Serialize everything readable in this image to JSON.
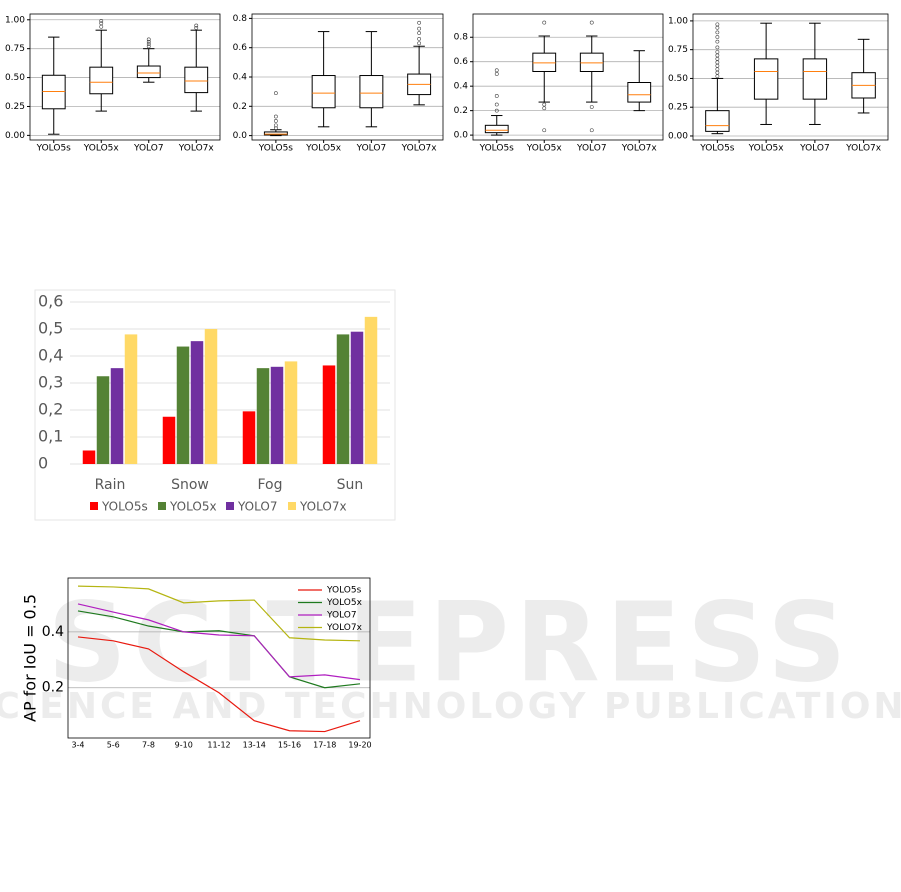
{
  "chart_data": [
    {
      "type": "box",
      "categories": [
        "YOLO5s",
        "YOLO5x",
        "YOLO7",
        "YOLO7x"
      ],
      "boxes": [
        {
          "whislo": 0.01,
          "q1": 0.23,
          "med": 0.38,
          "q3": 0.52,
          "whishi": 0.85,
          "fliers": []
        },
        {
          "whislo": 0.21,
          "q1": 0.36,
          "med": 0.46,
          "q3": 0.59,
          "whishi": 0.91,
          "fliers": [
            0.94,
            0.97,
            0.99
          ]
        },
        {
          "whislo": 0.46,
          "q1": 0.5,
          "med": 0.54,
          "q3": 0.6,
          "whishi": 0.75,
          "fliers": [
            0.77,
            0.79,
            0.81,
            0.83
          ]
        },
        {
          "whislo": 0.21,
          "q1": 0.37,
          "med": 0.47,
          "q3": 0.59,
          "whishi": 0.91,
          "fliers": [
            0.93,
            0.95
          ]
        }
      ],
      "ylim": [
        -0.04,
        1.05
      ],
      "yticks": [
        {
          "value": 0,
          "label": "0.00"
        },
        {
          "value": 0.25,
          "label": "0.25"
        },
        {
          "value": 0.5,
          "label": "0.50"
        },
        {
          "value": 0.75,
          "label": "0.75"
        },
        {
          "value": 1,
          "label": "1.00"
        }
      ],
      "grid": true,
      "median_color": "#ff7f0e"
    },
    {
      "type": "box",
      "categories": [
        "YOLO5s",
        "YOLO5x",
        "YOLO7",
        "YOLO7x"
      ],
      "boxes": [
        {
          "whislo": 0,
          "q1": 0.005,
          "med": 0.01,
          "q3": 0.025,
          "whishi": 0.04,
          "fliers": [
            0.05,
            0.07,
            0.1,
            0.13,
            0.29
          ]
        },
        {
          "whislo": 0.06,
          "q1": 0.19,
          "med": 0.29,
          "q3": 0.41,
          "whishi": 0.71,
          "fliers": []
        },
        {
          "whislo": 0.06,
          "q1": 0.19,
          "med": 0.29,
          "q3": 0.41,
          "whishi": 0.71,
          "fliers": []
        },
        {
          "whislo": 0.21,
          "q1": 0.28,
          "med": 0.35,
          "q3": 0.42,
          "whishi": 0.61,
          "fliers": [
            0.63,
            0.66,
            0.7,
            0.73,
            0.77
          ]
        }
      ],
      "ylim": [
        -0.03,
        0.83
      ],
      "yticks": [
        {
          "value": 0,
          "label": "0.0"
        },
        0.2,
        0.4,
        0.6,
        0.8
      ],
      "grid": true,
      "median_color": "#ff7f0e"
    },
    {
      "type": "box",
      "categories": [
        "YOLO5s",
        "YOLO5x",
        "YOLO7",
        "YOLO7x"
      ],
      "boxes": [
        {
          "whislo": 0,
          "q1": 0.02,
          "med": 0.04,
          "q3": 0.08,
          "whishi": 0.16,
          "fliers": [
            0.2,
            0.25,
            0.32,
            0.5,
            0.53
          ]
        },
        {
          "whislo": 0.27,
          "q1": 0.52,
          "med": 0.59,
          "q3": 0.67,
          "whishi": 0.81,
          "fliers": [
            0.04,
            0.22,
            0.25,
            0.92
          ]
        },
        {
          "whislo": 0.27,
          "q1": 0.52,
          "med": 0.59,
          "q3": 0.67,
          "whishi": 0.81,
          "fliers": [
            0.04,
            0.23,
            0.92
          ]
        },
        {
          "whislo": 0.2,
          "q1": 0.27,
          "med": 0.33,
          "q3": 0.43,
          "whishi": 0.69,
          "fliers": []
        }
      ],
      "ylim": [
        -0.04,
        0.99
      ],
      "yticks": [
        {
          "value": 0,
          "label": "0.0"
        },
        0.2,
        0.4,
        0.6,
        0.8
      ],
      "grid": true,
      "median_color": "#ff7f0e"
    },
    {
      "type": "box",
      "categories": [
        "YOLO5s",
        "YOLO5x",
        "YOLO7",
        "YOLO7x"
      ],
      "boxes": [
        {
          "whislo": 0.02,
          "q1": 0.04,
          "med": 0.09,
          "q3": 0.22,
          "whishi": 0.5,
          "fliers": [
            0.52,
            0.55,
            0.58,
            0.61,
            0.64,
            0.67,
            0.7,
            0.73,
            0.77,
            0.82,
            0.86,
            0.9,
            0.94,
            0.97
          ]
        },
        {
          "whislo": 0.1,
          "q1": 0.32,
          "med": 0.56,
          "q3": 0.67,
          "whishi": 0.98,
          "fliers": []
        },
        {
          "whislo": 0.1,
          "q1": 0.32,
          "med": 0.56,
          "q3": 0.67,
          "whishi": 0.98,
          "fliers": []
        },
        {
          "whislo": 0.2,
          "q1": 0.33,
          "med": 0.44,
          "q3": 0.55,
          "whishi": 0.84,
          "fliers": []
        }
      ],
      "ylim": [
        -0.035,
        1.06
      ],
      "yticks": [
        {
          "value": 0,
          "label": "0.00"
        },
        {
          "value": 0.25,
          "label": "0.25"
        },
        {
          "value": 0.5,
          "label": "0.50"
        },
        {
          "value": 0.75,
          "label": "0.75"
        },
        {
          "value": 1,
          "label": "1.00"
        }
      ],
      "grid": true,
      "median_color": "#ff7f0e"
    },
    {
      "type": "bar",
      "categories": [
        "Rain",
        "Snow",
        "Fog",
        "Sun"
      ],
      "series": [
        {
          "name": "YOLO5s",
          "color": "#ff0000",
          "values": [
            0.05,
            0.175,
            0.195,
            0.365
          ]
        },
        {
          "name": "YOLO5x",
          "color": "#548235",
          "values": [
            0.325,
            0.435,
            0.355,
            0.48
          ]
        },
        {
          "name": "YOLO7",
          "color": "#7030a0",
          "values": [
            0.355,
            0.455,
            0.36,
            0.49
          ]
        },
        {
          "name": "YOLO7x",
          "color": "#ffd966",
          "values": [
            0.48,
            0.5,
            0.38,
            0.545
          ]
        }
      ],
      "ylim": [
        0,
        0.6
      ],
      "yticks": [
        0,
        {
          "value": 0.1,
          "label": "0,1"
        },
        {
          "value": 0.2,
          "label": "0,2"
        },
        {
          "value": 0.3,
          "label": "0,3"
        },
        {
          "value": 0.4,
          "label": "0,4"
        },
        {
          "value": 0.5,
          "label": "0,5"
        },
        {
          "value": 0.6,
          "label": "0,6"
        }
      ],
      "grid": true,
      "legend": "bottom"
    },
    {
      "type": "line",
      "y_label": "AP for IoU = 0.5",
      "categories": [
        "3-4",
        "5-6",
        "7-8",
        "9-10",
        "11-12",
        "13-14",
        "15-16",
        "17-18",
        "19-20"
      ],
      "series": [
        {
          "name": "YOLO5s",
          "color": "#e8190f",
          "values": [
            0.382,
            0.368,
            0.339,
            0.257,
            0.182,
            0.082,
            0.046,
            0.043,
            0.082
          ]
        },
        {
          "name": "YOLO5x",
          "color": "#1f7a1f",
          "values": [
            0.475,
            0.454,
            0.421,
            0.4,
            0.404,
            0.386,
            0.239,
            0.2,
            0.214
          ]
        },
        {
          "name": "YOLO7",
          "color": "#b01fc0",
          "values": [
            0.5,
            0.471,
            0.443,
            0.4,
            0.389,
            0.386,
            0.239,
            0.246,
            0.229
          ]
        },
        {
          "name": "YOLO7x",
          "color": "#b5b512",
          "values": [
            0.564,
            0.561,
            0.554,
            0.504,
            0.511,
            0.514,
            0.379,
            0.371,
            0.368
          ]
        }
      ],
      "ylim": [
        0.02,
        0.593
      ],
      "yticks": [
        0.2,
        0.4
      ],
      "grid": true,
      "legend": "upper right"
    }
  ],
  "watermark": {
    "title": "SCITEPRESS",
    "subtitle": "SCIENCE AND TECHNOLOGY PUBLICATIONS"
  }
}
